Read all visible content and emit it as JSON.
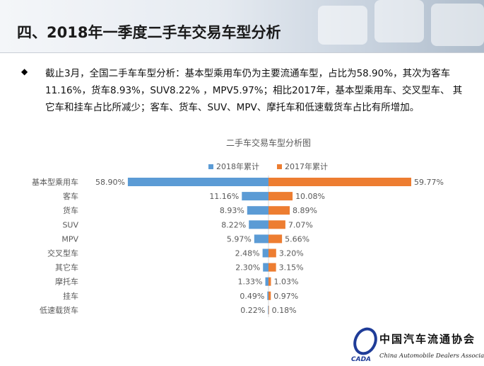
{
  "header": {
    "title": "四、2018年一季度二手车交易车型分析"
  },
  "body": {
    "bullet_icon": "diamond-bullet",
    "text": "截止3月，全国二手车车型分析：基本型乘用车仍为主要流通车型，占比为58.90%，其次为客车11.16%，货车8.93%，SUV8.22% ，MPV5.97%；相比2017年，基本型乘用车、交叉型车、 其它车和挂车占比所减少；客车、货车、SUV、MPV、摩托车和低速载货车占比有所增加。"
  },
  "chart_data": {
    "type": "bar",
    "orientation": "horizontal-butterfly",
    "title": "二手车交易车型分析图",
    "categories": [
      "基本型乘用车",
      "客车",
      "货车",
      "SUV",
      "MPV",
      "交叉型车",
      "其它车",
      "摩托车",
      "挂车",
      "低速载货车"
    ],
    "series": [
      {
        "name": "2018年累计",
        "color": "#5b9bd5",
        "values": [
          58.9,
          11.16,
          8.93,
          8.22,
          5.97,
          2.48,
          2.3,
          1.33,
          0.49,
          0.22
        ],
        "labels": [
          "58.90%",
          "11.16%",
          "8.93%",
          "8.22%",
          "5.97%",
          "2.48%",
          "2.30%",
          "1.33%",
          "0.49%",
          "0.22%"
        ]
      },
      {
        "name": "2017年累计",
        "color": "#ed7d31",
        "values": [
          59.77,
          10.08,
          8.89,
          7.07,
          5.66,
          3.2,
          3.15,
          1.03,
          0.97,
          0.18
        ],
        "labels": [
          "59.77%",
          "10.08%",
          "8.89%",
          "7.07%",
          "5.66%",
          "3.20%",
          "3.15%",
          "1.03%",
          "0.97%",
          "0.18%"
        ]
      }
    ],
    "legend": "top",
    "grid": false
  },
  "logo": {
    "text_cn": "中国汽车流通协会",
    "text_en": "China Automobile Dealers Association",
    "abbr": "CADA"
  }
}
